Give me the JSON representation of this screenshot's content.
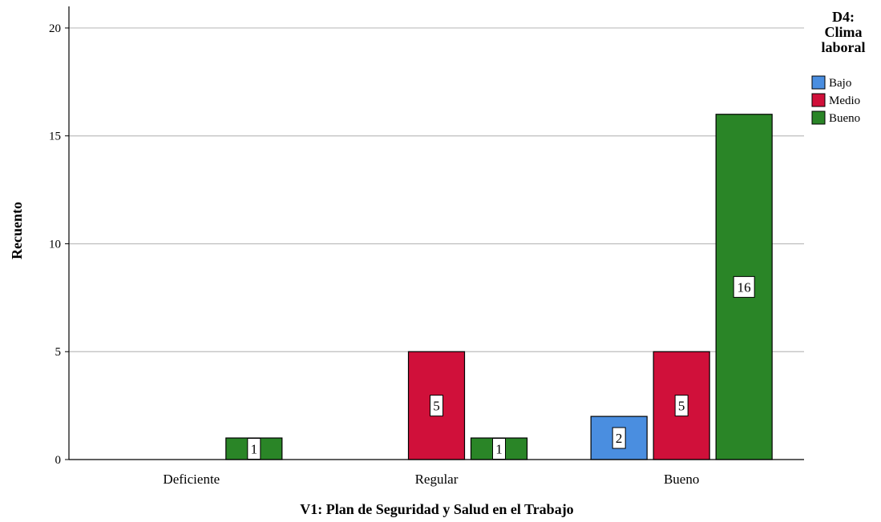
{
  "chart_data": {
    "type": "bar",
    "title": "",
    "xlabel": "V1: Plan de Seguridad y Salud en el Trabajo",
    "ylabel": "Recuento",
    "categories": [
      "Deficiente",
      "Regular",
      "Bueno"
    ],
    "series": [
      {
        "name": "Bajo",
        "values": [
          0,
          0,
          2
        ],
        "color": "#4a8ee0"
      },
      {
        "name": "Medio",
        "values": [
          0,
          5,
          5
        ],
        "color": "#d0103a"
      },
      {
        "name": "Bueno",
        "values": [
          1,
          1,
          16
        ],
        "color": "#2a8527"
      }
    ],
    "ylim": [
      0,
      21
    ],
    "yticks": [
      0,
      5,
      10,
      15,
      20
    ],
    "grid": true,
    "legend": {
      "title_lines": [
        "D4:",
        "Clima",
        "laboral"
      ],
      "placement": "right"
    },
    "data_labels": true
  }
}
